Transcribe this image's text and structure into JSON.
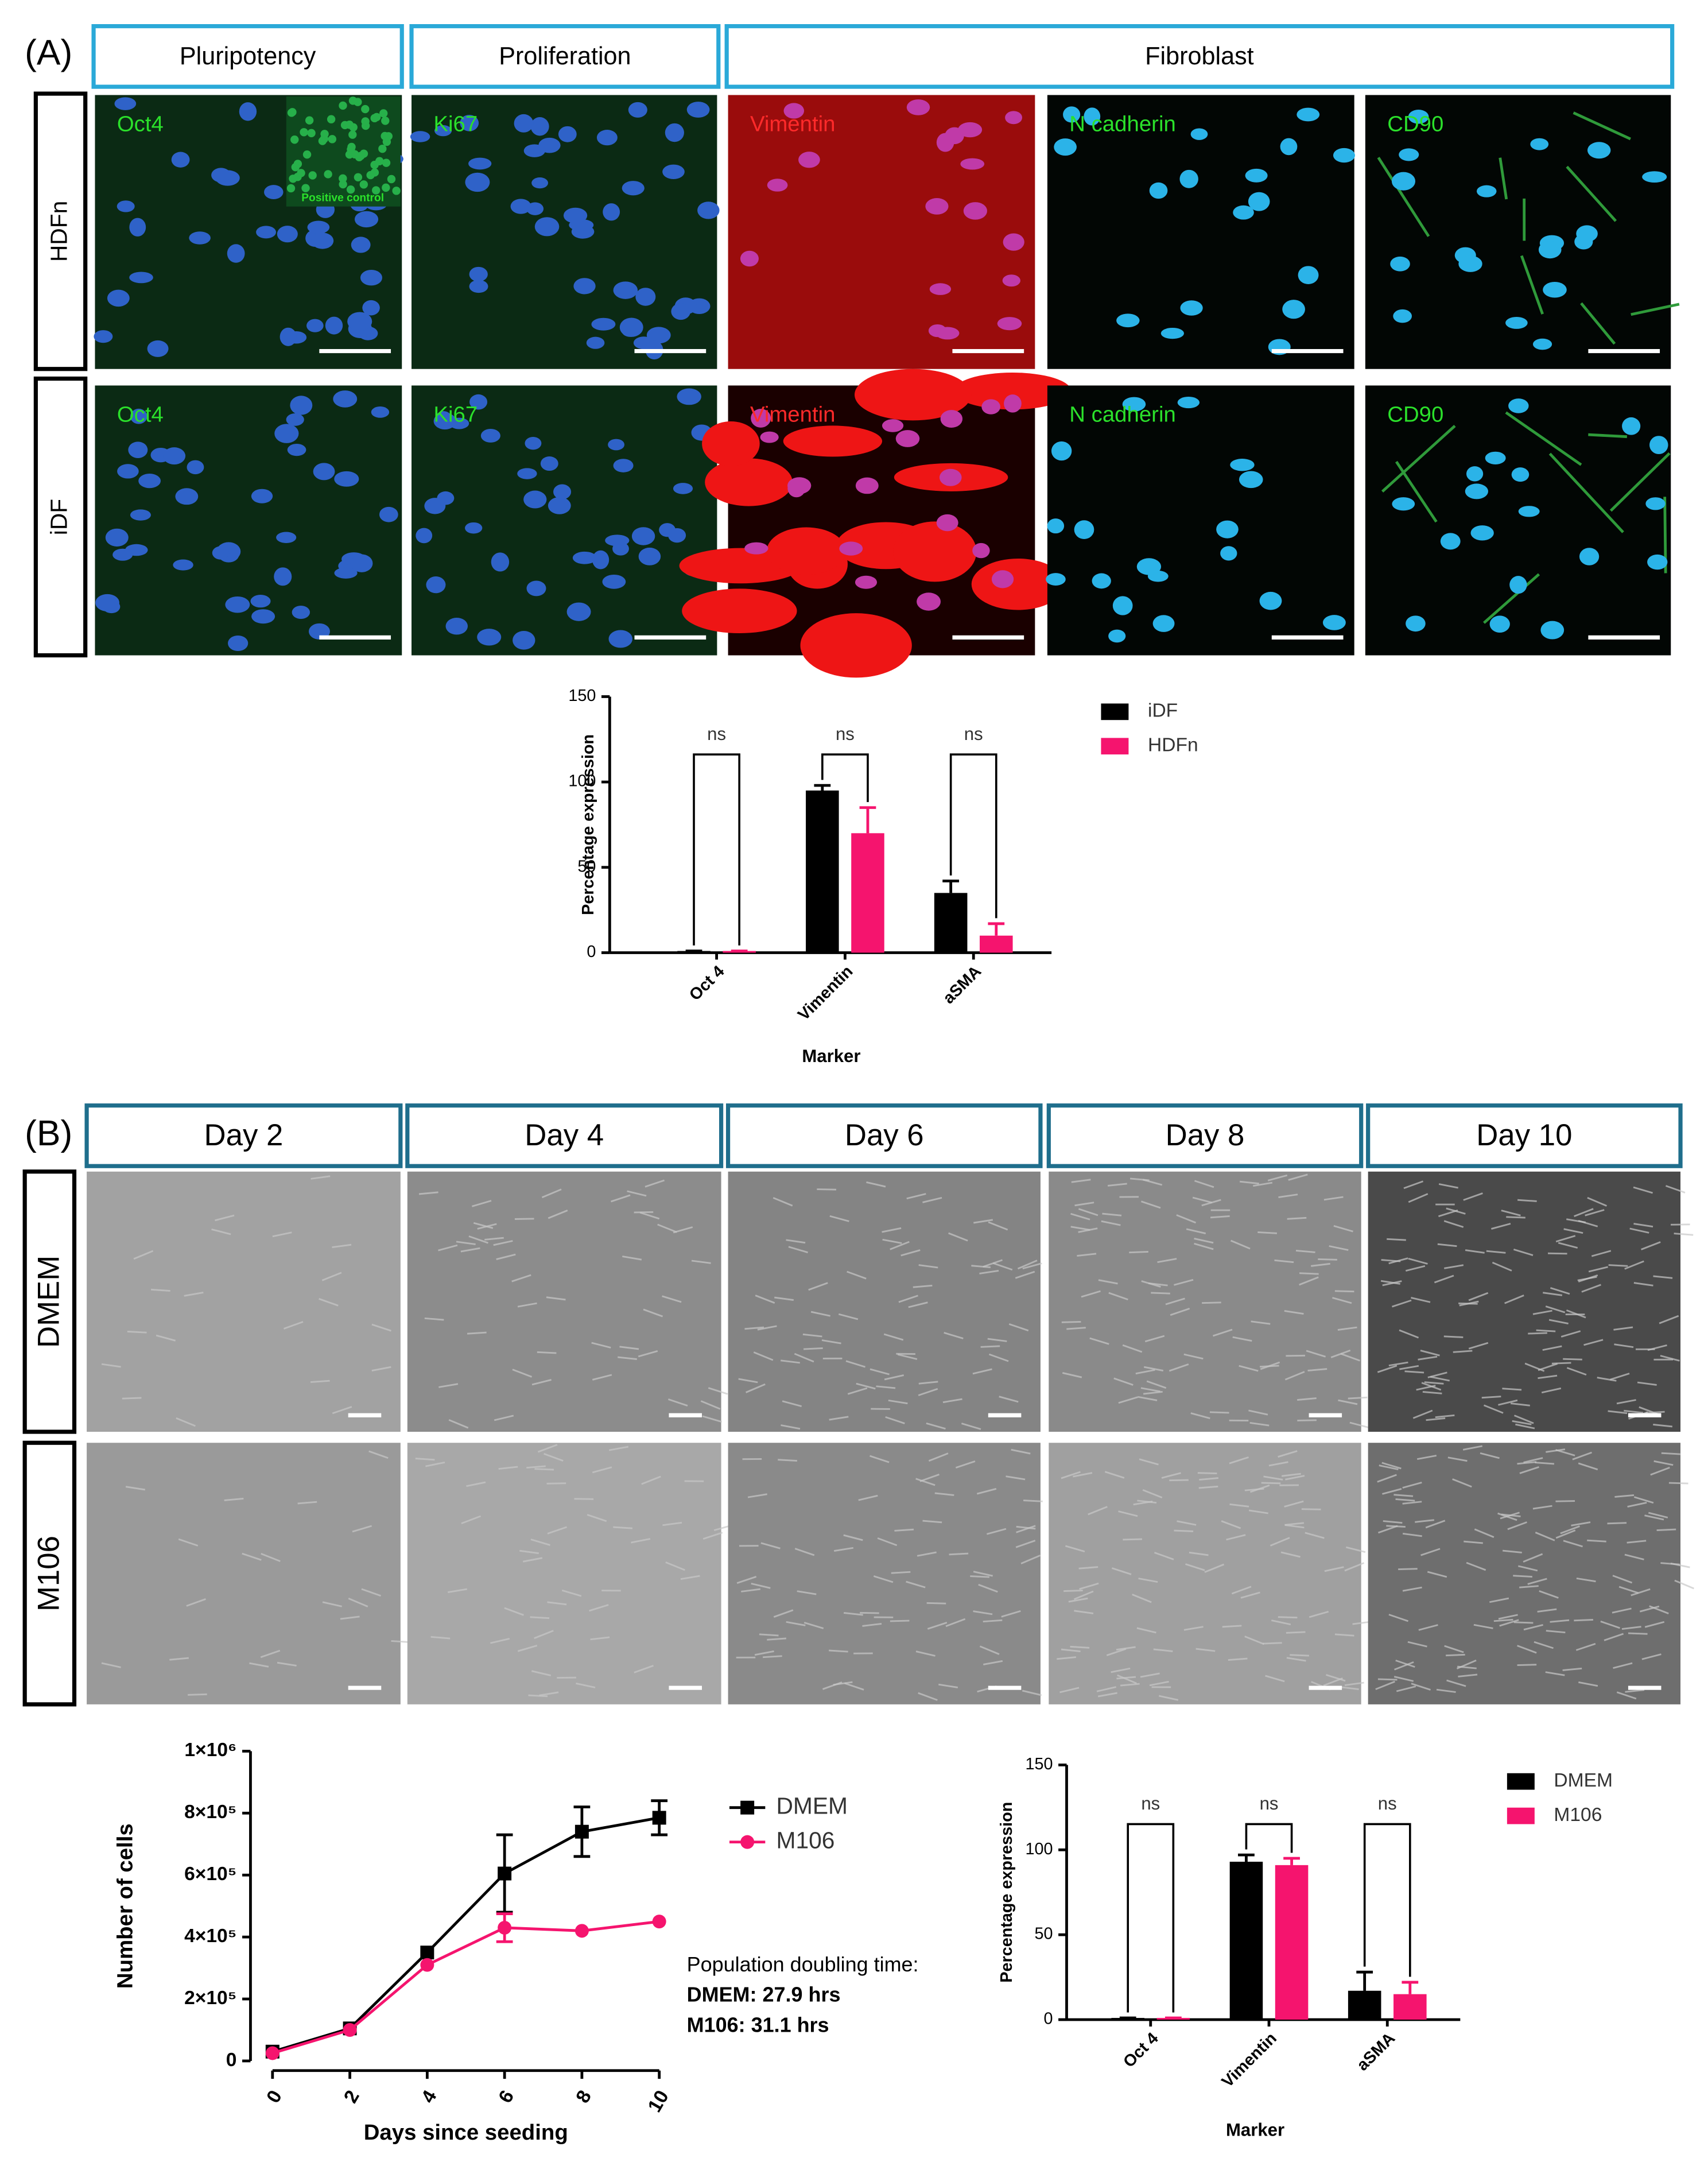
{
  "panel_a": {
    "label": "(A)",
    "column_headers": [
      "Pluripotency",
      "Proliferation",
      "Fibroblast"
    ],
    "row_labels": [
      "HDFn",
      "iDF"
    ],
    "image_labels": [
      [
        "Oct4",
        "Ki67",
        "Vimentin",
        "N cadherin",
        "CD90"
      ],
      [
        "Oct4",
        "Ki67",
        "Vimentin",
        "N cadherin",
        "CD90"
      ]
    ],
    "inset_label": "Positive control"
  },
  "panel_b": {
    "label": "(B)",
    "column_headers": [
      "Day 2",
      "Day 4",
      "Day 6",
      "Day 8",
      "Day 10"
    ],
    "row_labels": [
      "DMEM",
      "M106"
    ]
  },
  "chart_data": [
    {
      "type": "bar",
      "ylabel": "Percentage expression",
      "xlabel": "Marker",
      "categories": [
        "Oct 4",
        "Vimentin",
        "aSMA"
      ],
      "series": [
        {
          "name": "iDF",
          "color": "#000000",
          "values": [
            1,
            95,
            35
          ],
          "errors": [
            0,
            3,
            7
          ]
        },
        {
          "name": "HDFn",
          "color": "#f5146e",
          "values": [
            1,
            70,
            10
          ],
          "errors": [
            0,
            15,
            7
          ]
        }
      ],
      "significance": [
        "ns",
        "ns",
        "ns"
      ],
      "ylim": [
        0,
        150
      ],
      "yticks": [
        0,
        50,
        100,
        150
      ]
    },
    {
      "type": "line",
      "ylabel": "Number of cells",
      "xlabel": "Days since seeding",
      "x": [
        0,
        2,
        4,
        6,
        8,
        10
      ],
      "series": [
        {
          "name": "DMEM",
          "color": "#000000",
          "marker": "square",
          "values": [
            30000,
            105000,
            350000,
            605000,
            740000,
            785000
          ],
          "errors": [
            0,
            0,
            0,
            125000,
            80000,
            55000
          ]
        },
        {
          "name": "M106",
          "color": "#f5146e",
          "marker": "circle",
          "values": [
            25000,
            100000,
            310000,
            430000,
            420000,
            450000
          ],
          "errors": [
            0,
            0,
            0,
            45000,
            0,
            0
          ]
        }
      ],
      "annotation": [
        "Population doubling time:",
        "DMEM: 27.9 hrs",
        "M106: 31.1 hrs"
      ],
      "xlim": [
        0,
        10
      ],
      "xticks": [
        0,
        2,
        4,
        6,
        8,
        10
      ],
      "ylim": [
        0,
        1000000
      ],
      "yticks": [
        0,
        {
          "value": 200000,
          "label": "2×10⁵"
        },
        {
          "value": 400000,
          "label": "4×10⁵"
        },
        {
          "value": 600000,
          "label": "6×10⁵"
        },
        {
          "value": 800000,
          "label": "8×10⁵"
        },
        {
          "value": 1000000,
          "label": "1×10⁶"
        }
      ]
    },
    {
      "type": "bar",
      "ylabel": "Percentage expression",
      "xlabel": "Marker",
      "categories": [
        "Oct 4",
        "Vimentin",
        "aSMA"
      ],
      "series": [
        {
          "name": "DMEM",
          "color": "#000000",
          "values": [
            1,
            93,
            17
          ],
          "errors": [
            0,
            4,
            11
          ]
        },
        {
          "name": "M106",
          "color": "#f5146e",
          "values": [
            1,
            91,
            15
          ],
          "errors": [
            0,
            4,
            7
          ]
        }
      ],
      "significance": [
        "ns",
        "ns",
        "ns"
      ],
      "ylim": [
        0,
        150
      ],
      "yticks": [
        0,
        50,
        100,
        150
      ]
    }
  ]
}
